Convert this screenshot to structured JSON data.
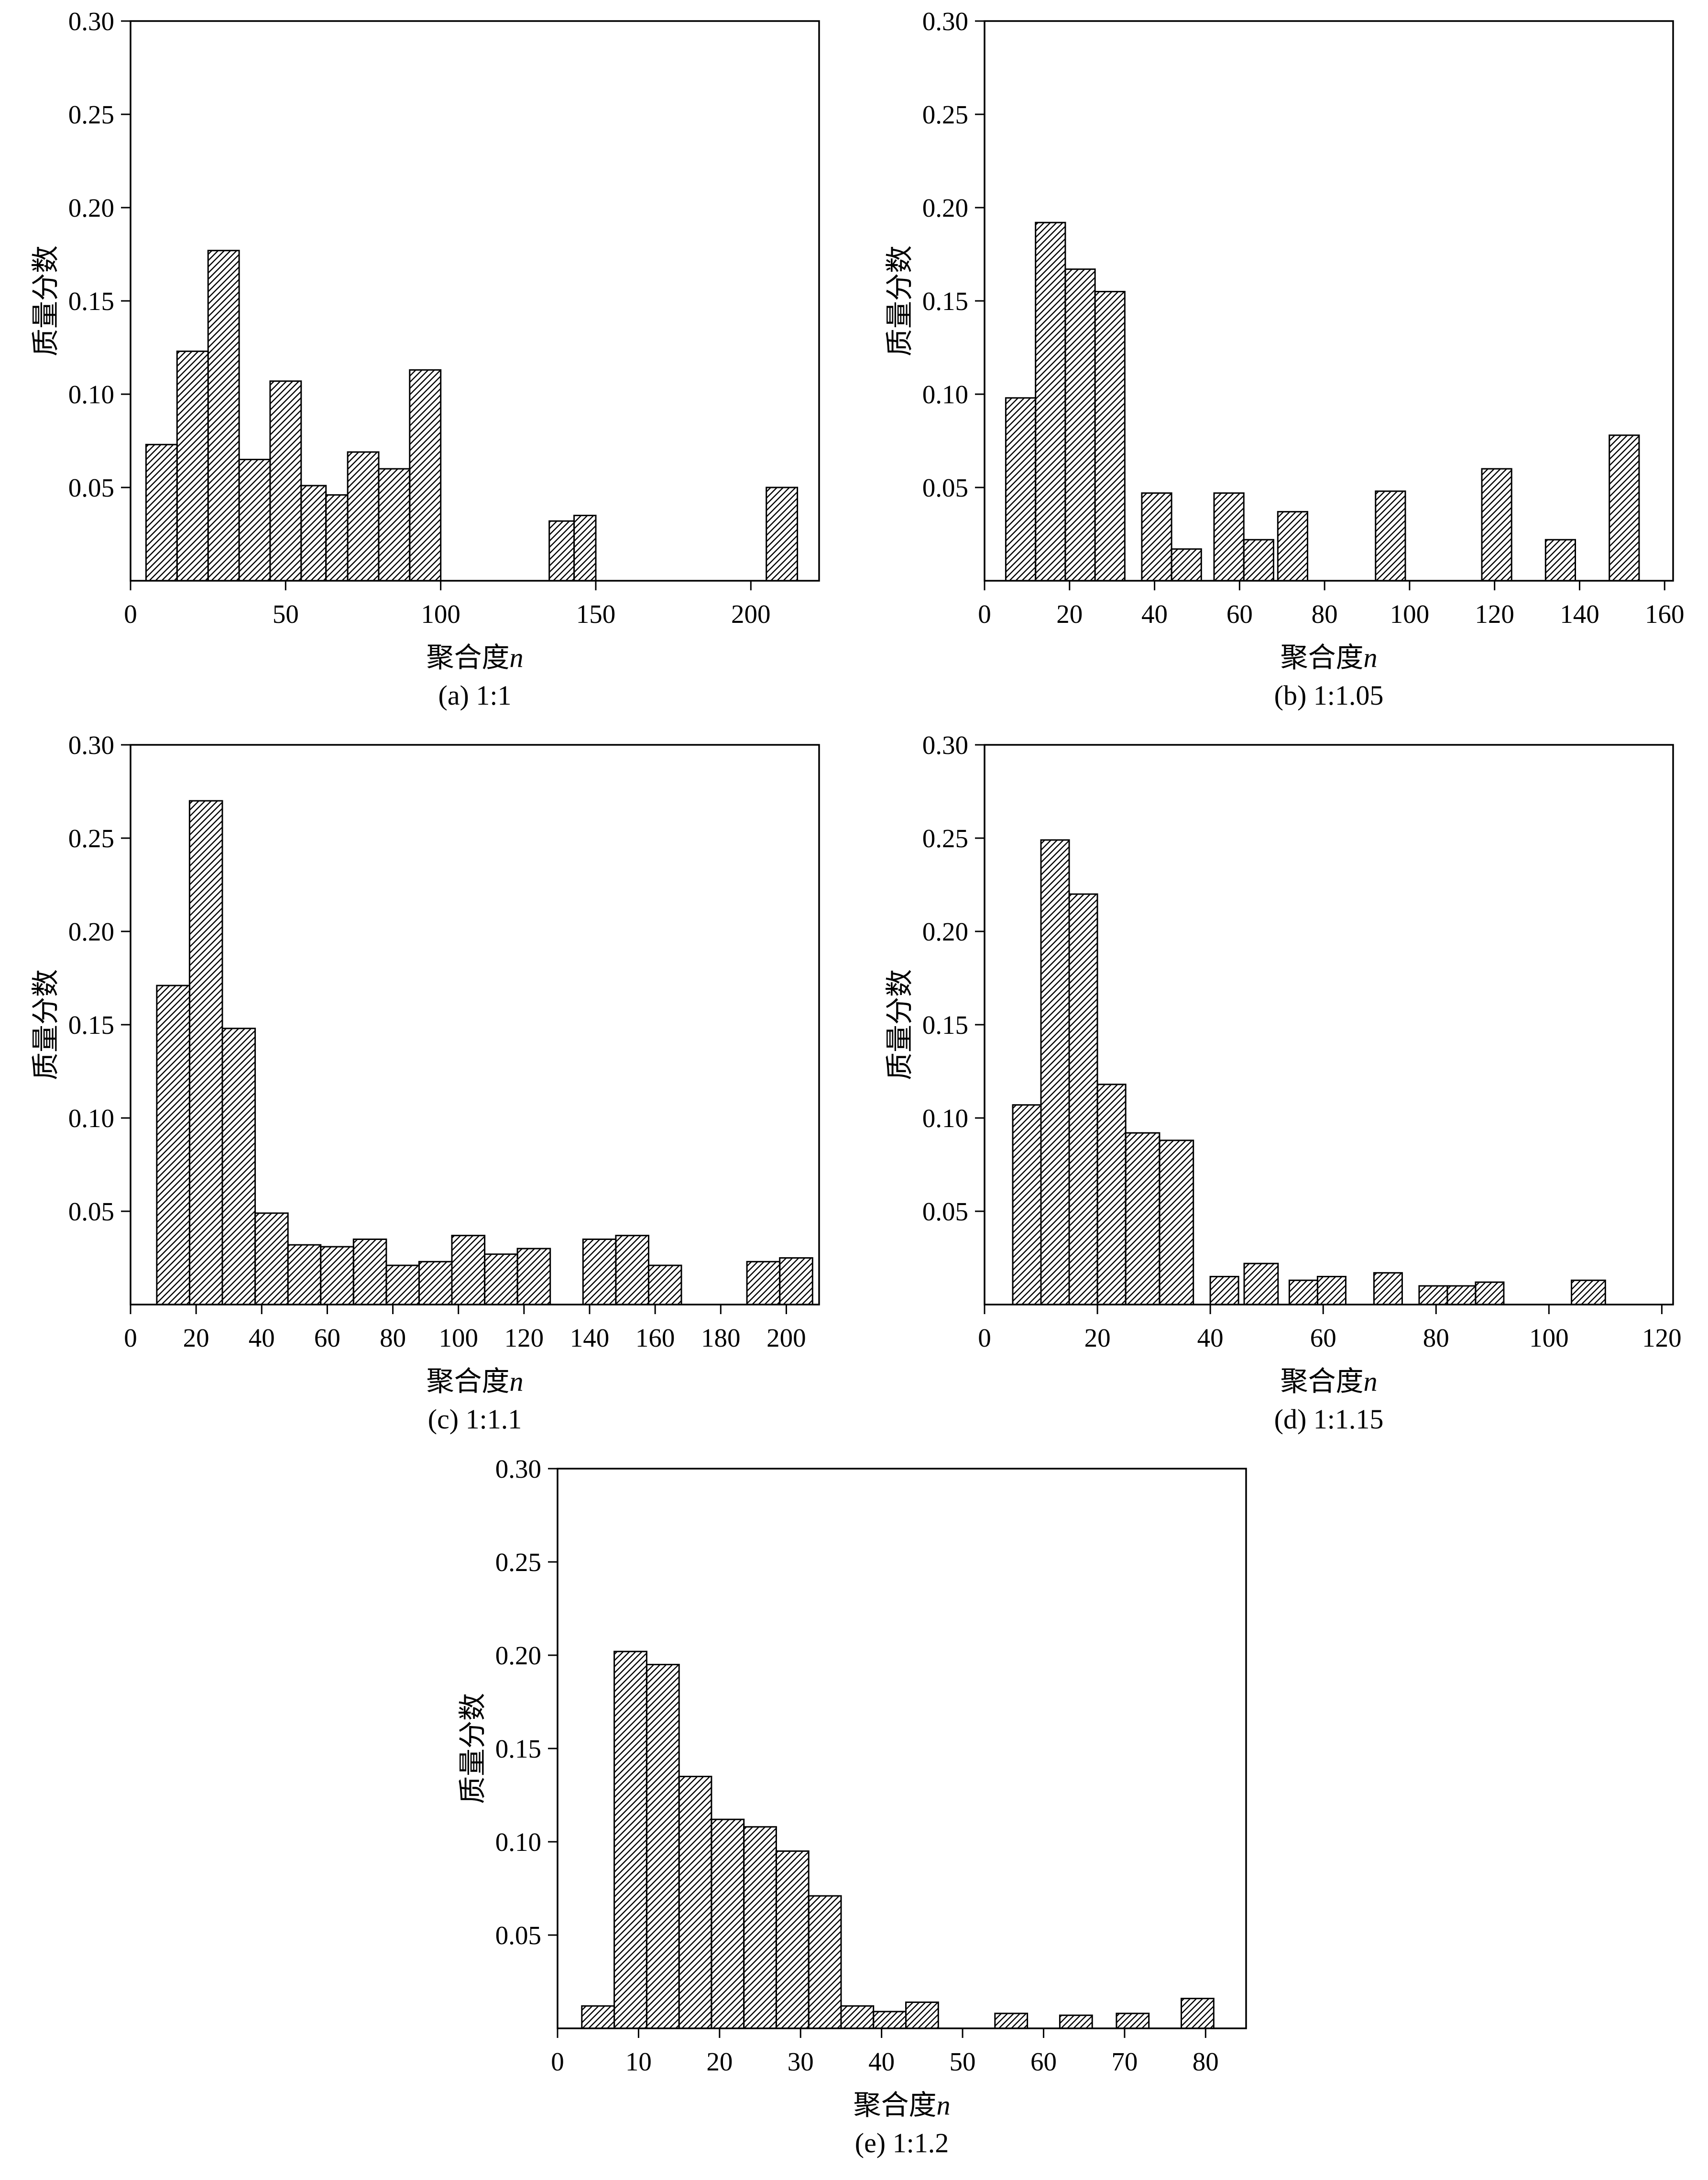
{
  "colors": {
    "ink": "#000000",
    "background": "#ffffff"
  },
  "chart_data": [
    {
      "type": "bar",
      "title": "(a) 1:1",
      "xlabel": "聚合度n",
      "ylabel": "质量分数",
      "xlim": [
        0,
        222
      ],
      "xticks": [
        0,
        50,
        100,
        150,
        200
      ],
      "ylim": [
        0,
        0.3
      ],
      "yticks": [
        0.05,
        0.1,
        0.15,
        0.2,
        0.25,
        0.3
      ],
      "bars": [
        [
          5,
          15,
          0.073
        ],
        [
          15,
          25,
          0.123
        ],
        [
          25,
          35,
          0.177
        ],
        [
          35,
          45,
          0.065
        ],
        [
          45,
          55,
          0.107
        ],
        [
          55,
          63,
          0.051
        ],
        [
          63,
          70,
          0.046
        ],
        [
          70,
          80,
          0.069
        ],
        [
          80,
          90,
          0.06
        ],
        [
          90,
          100,
          0.113
        ],
        [
          135,
          143,
          0.032
        ],
        [
          143,
          150,
          0.035
        ],
        [
          205,
          215,
          0.05
        ]
      ]
    },
    {
      "type": "bar",
      "title": "(b) 1:1.05",
      "xlabel": "聚合度n",
      "ylabel": "质量分数",
      "xlim": [
        0,
        162
      ],
      "xticks": [
        0,
        20,
        40,
        60,
        80,
        100,
        120,
        140,
        160
      ],
      "ylim": [
        0,
        0.3
      ],
      "yticks": [
        0.05,
        0.1,
        0.15,
        0.2,
        0.25,
        0.3
      ],
      "bars": [
        [
          5,
          12,
          0.098
        ],
        [
          12,
          19,
          0.192
        ],
        [
          19,
          26,
          0.167
        ],
        [
          26,
          33,
          0.155
        ],
        [
          37,
          44,
          0.047
        ],
        [
          44,
          51,
          0.017
        ],
        [
          54,
          61,
          0.047
        ],
        [
          61,
          68,
          0.022
        ],
        [
          69,
          76,
          0.037
        ],
        [
          92,
          99,
          0.048
        ],
        [
          117,
          124,
          0.06
        ],
        [
          132,
          139,
          0.022
        ],
        [
          147,
          154,
          0.078
        ]
      ]
    },
    {
      "type": "bar",
      "title": "(c) 1:1.1",
      "xlabel": "聚合度n",
      "ylabel": "质量分数",
      "xlim": [
        0,
        210
      ],
      "xticks": [
        0,
        20,
        40,
        60,
        80,
        100,
        120,
        140,
        160,
        180,
        200
      ],
      "ylim": [
        0,
        0.3
      ],
      "yticks": [
        0.05,
        0.1,
        0.15,
        0.2,
        0.25,
        0.3
      ],
      "bars": [
        [
          8,
          18,
          0.171
        ],
        [
          18,
          28,
          0.27
        ],
        [
          28,
          38,
          0.148
        ],
        [
          38,
          48,
          0.049
        ],
        [
          48,
          58,
          0.032
        ],
        [
          58,
          68,
          0.031
        ],
        [
          68,
          78,
          0.035
        ],
        [
          78,
          88,
          0.021
        ],
        [
          88,
          98,
          0.023
        ],
        [
          98,
          108,
          0.037
        ],
        [
          108,
          118,
          0.027
        ],
        [
          118,
          128,
          0.03
        ],
        [
          138,
          148,
          0.035
        ],
        [
          148,
          158,
          0.037
        ],
        [
          158,
          168,
          0.021
        ],
        [
          188,
          198,
          0.023
        ],
        [
          198,
          208,
          0.025
        ]
      ]
    },
    {
      "type": "bar",
      "title": "(d) 1:1.15",
      "xlabel": "聚合度n",
      "ylabel": "质量分数",
      "xlim": [
        0,
        122
      ],
      "xticks": [
        0,
        20,
        40,
        60,
        80,
        100,
        120
      ],
      "ylim": [
        0,
        0.3
      ],
      "yticks": [
        0.05,
        0.1,
        0.15,
        0.2,
        0.25,
        0.3
      ],
      "bars": [
        [
          5,
          10,
          0.107
        ],
        [
          10,
          15,
          0.249
        ],
        [
          15,
          20,
          0.22
        ],
        [
          20,
          25,
          0.118
        ],
        [
          25,
          31,
          0.092
        ],
        [
          31,
          37,
          0.088
        ],
        [
          40,
          45,
          0.015
        ],
        [
          46,
          52,
          0.022
        ],
        [
          54,
          59,
          0.013
        ],
        [
          59,
          64,
          0.015
        ],
        [
          69,
          74,
          0.017
        ],
        [
          77,
          82,
          0.01
        ],
        [
          82,
          87,
          0.01
        ],
        [
          87,
          92,
          0.012
        ],
        [
          104,
          110,
          0.013
        ]
      ]
    },
    {
      "type": "bar",
      "title": "(e) 1:1.2",
      "xlabel": "聚合度n",
      "ylabel": "质量分数",
      "xlim": [
        0,
        85
      ],
      "xticks": [
        0,
        10,
        20,
        30,
        40,
        50,
        60,
        70,
        80
      ],
      "ylim": [
        0,
        0.3
      ],
      "yticks": [
        0.05,
        0.1,
        0.15,
        0.2,
        0.25,
        0.3
      ],
      "bars": [
        [
          3,
          7,
          0.012
        ],
        [
          7,
          11,
          0.202
        ],
        [
          11,
          15,
          0.195
        ],
        [
          15,
          19,
          0.135
        ],
        [
          19,
          23,
          0.112
        ],
        [
          23,
          27,
          0.108
        ],
        [
          27,
          31,
          0.095
        ],
        [
          31,
          35,
          0.071
        ],
        [
          35,
          39,
          0.012
        ],
        [
          39,
          43,
          0.009
        ],
        [
          43,
          47,
          0.014
        ],
        [
          54,
          58,
          0.008
        ],
        [
          62,
          66,
          0.007
        ],
        [
          69,
          73,
          0.008
        ],
        [
          77,
          81,
          0.016
        ]
      ]
    }
  ]
}
